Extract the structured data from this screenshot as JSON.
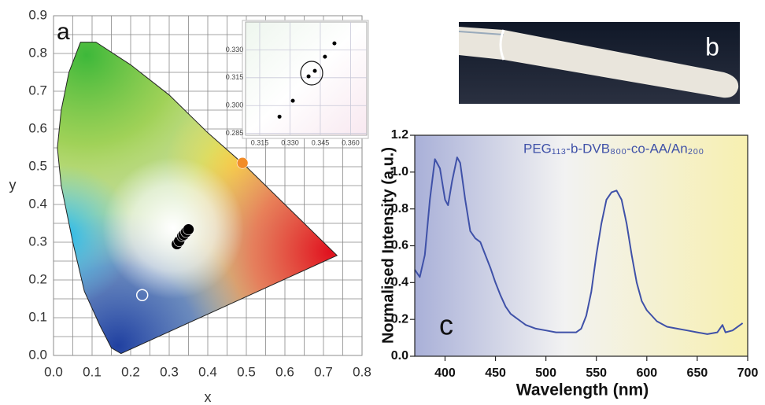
{
  "chart_data": [
    {
      "type": "scatter",
      "panel_label": "a",
      "xlabel": "x",
      "ylabel": "y",
      "xlim": [
        0,
        0.8
      ],
      "ylim": [
        0,
        0.9
      ],
      "xticks": [
        {
          "value": 0,
          "label": "0.0"
        },
        0.1,
        0.2,
        0.3,
        0.4,
        0.5,
        0.6,
        0.7,
        0.8
      ],
      "yticks": [
        {
          "value": 0,
          "label": "0.0"
        },
        0.1,
        0.2,
        0.3,
        0.4,
        0.5,
        0.6,
        0.7,
        0.8,
        0.9
      ],
      "grid": true,
      "series": [
        {
          "color": "#000000",
          "filled": true,
          "x": [
            0.32,
            0.326,
            0.334,
            0.338,
            0.344,
            0.35
          ],
          "values": [
            0.295,
            0.303,
            0.316,
            0.32,
            0.327,
            0.334
          ]
        },
        {
          "color": "#f28c28",
          "filled": true,
          "x": [
            0.49
          ],
          "values": [
            0.51
          ]
        },
        {
          "color": "#ffffff",
          "filled": false,
          "x": [
            0.23
          ],
          "values": [
            0.16
          ]
        }
      ]
    },
    {
      "type": "scatter",
      "xlim": [
        0.308,
        0.368
      ],
      "ylim": [
        0.284,
        0.345
      ],
      "xticks": [
        0.315,
        {
          "value": 0.33,
          "label": "0.330"
        },
        0.345,
        {
          "value": 0.36,
          "label": "0.360"
        }
      ],
      "yticks": [
        0.285,
        {
          "value": 0.3,
          "label": "0.300"
        },
        0.315,
        {
          "value": 0.33,
          "label": "0.330"
        }
      ],
      "grid": true,
      "series": [
        {
          "color": "#000000",
          "filled": true,
          "x": [
            0.3248,
            0.3314,
            0.3392,
            0.3423,
            0.3473,
            0.352
          ],
          "values": [
            0.294,
            0.3026,
            0.3157,
            0.3187,
            0.3263,
            0.3335
          ]
        }
      ]
    },
    {
      "type": "line",
      "panel_label": "c",
      "xlabel": "Wavelength (nm)",
      "ylabel": "Normalised Intensity (a.u.)",
      "xlim": [
        370,
        700
      ],
      "ylim": [
        0,
        1.2
      ],
      "xticks": [
        400,
        450,
        500,
        550,
        600,
        650,
        700
      ],
      "yticks": [
        {
          "value": 0,
          "label": "0.0"
        },
        0.2,
        0.4,
        0.6,
        0.8,
        {
          "value": 1,
          "label": "1.0"
        },
        1.2
      ],
      "grid": false,
      "x": [
        370,
        375,
        380,
        385,
        390,
        395,
        400,
        403,
        407,
        412,
        415,
        420,
        425,
        430,
        435,
        440,
        445,
        450,
        455,
        460,
        465,
        470,
        475,
        480,
        490,
        500,
        510,
        520,
        530,
        535,
        540,
        545,
        550,
        555,
        560,
        565,
        570,
        575,
        580,
        585,
        590,
        595,
        600,
        610,
        620,
        630,
        640,
        650,
        660,
        670,
        675,
        678,
        685,
        695
      ],
      "series": [
        {
          "name": "PEG₁₁₃-b-DVB₈₀₀-co-AA/An₂₀₀",
          "color": "#3f51a8",
          "values": [
            0.47,
            0.43,
            0.55,
            0.85,
            1.07,
            1.02,
            0.85,
            0.82,
            0.95,
            1.08,
            1.05,
            0.85,
            0.68,
            0.64,
            0.62,
            0.55,
            0.48,
            0.4,
            0.33,
            0.27,
            0.23,
            0.21,
            0.19,
            0.17,
            0.15,
            0.14,
            0.13,
            0.13,
            0.13,
            0.15,
            0.22,
            0.35,
            0.55,
            0.72,
            0.85,
            0.89,
            0.9,
            0.85,
            0.72,
            0.55,
            0.4,
            0.3,
            0.25,
            0.19,
            0.16,
            0.15,
            0.14,
            0.13,
            0.12,
            0.13,
            0.17,
            0.13,
            0.14,
            0.18
          ]
        }
      ]
    }
  ],
  "photo": {
    "label": "b"
  }
}
